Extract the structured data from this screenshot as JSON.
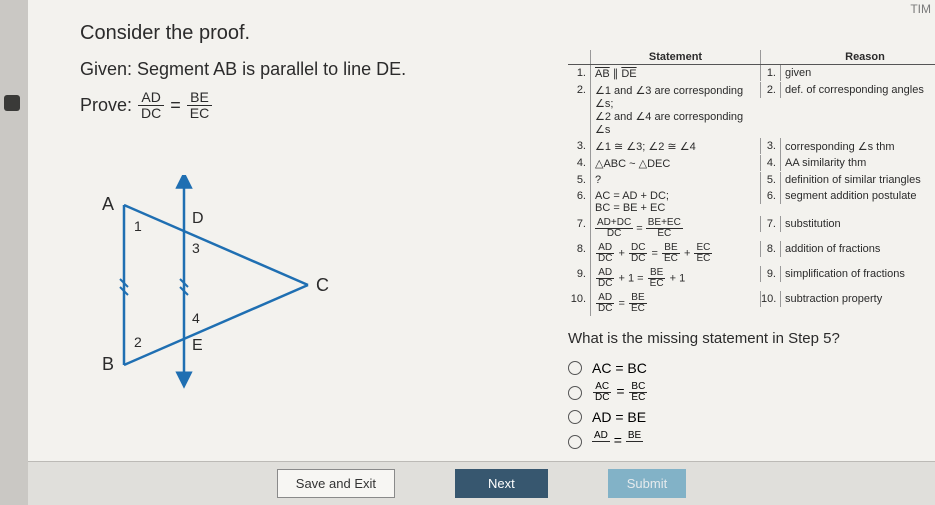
{
  "header_corner": "TIM",
  "stem": "Consider the proof.",
  "given": "Given: Segment AB is parallel to line DE.",
  "prove_label": "Prove:",
  "prove_frac1": {
    "num": "AD",
    "den": "DC"
  },
  "prove_eq": "=",
  "prove_frac2": {
    "num": "BE",
    "den": "EC"
  },
  "diagram": {
    "labels": {
      "A": "A",
      "B": "B",
      "C": "C",
      "D": "D",
      "E": "E",
      "a1": "1",
      "a2": "2",
      "a3": "3",
      "a4": "4"
    },
    "colors": {
      "line": "#1f6fb2",
      "arrow": "#1f6fb2",
      "text": "#2b2b2b"
    }
  },
  "proof": {
    "headers": {
      "statement": "Statement",
      "reason": "Reason"
    },
    "rows": [
      {
        "n": "1.",
        "s_html": "<span class='overline'>AB</span> ∥ <span class='overline'>DE</span>",
        "rn": "1.",
        "r": "given"
      },
      {
        "n": "2.",
        "s_html": "∠1 and ∠3 are corresponding ∠s;<br>∠2 and ∠4 are corresponding ∠s",
        "rn": "2.",
        "r": "def. of corresponding angles"
      },
      {
        "n": "3.",
        "s_html": "∠1 ≅ ∠3; ∠2 ≅ ∠4",
        "rn": "3.",
        "r": "corresponding ∠s thm"
      },
      {
        "n": "4.",
        "s_html": "△ABC ~ △DEC",
        "rn": "4.",
        "r": "AA similarity thm"
      },
      {
        "n": "5.",
        "s_html": "?",
        "rn": "5.",
        "r": "definition of similar triangles"
      },
      {
        "n": "6.",
        "s_html": "AC = AD + DC;<br>BC = BE + EC",
        "rn": "6.",
        "r": "segment addition postulate"
      },
      {
        "n": "7.",
        "s_html": "<span class='frac frac-sm'><span class='num'>AD+DC</span><span class='den'>DC</span></span> = <span class='frac frac-sm'><span class='num'>BE+EC</span><span class='den'>EC</span></span>",
        "rn": "7.",
        "r": "substitution"
      },
      {
        "n": "8.",
        "s_html": "<span class='frac frac-sm'><span class='num'>AD</span><span class='den'>DC</span></span> + <span class='frac frac-sm'><span class='num'>DC</span><span class='den'>DC</span></span> = <span class='frac frac-sm'><span class='num'>BE</span><span class='den'>EC</span></span> + <span class='frac frac-sm'><span class='num'>EC</span><span class='den'>EC</span></span>",
        "rn": "8.",
        "r": "addition of fractions"
      },
      {
        "n": "9.",
        "s_html": "<span class='frac frac-sm'><span class='num'>AD</span><span class='den'>DC</span></span> + 1 = <span class='frac frac-sm'><span class='num'>BE</span><span class='den'>EC</span></span> + 1",
        "rn": "9.",
        "r": "simplification of fractions"
      },
      {
        "n": "10.",
        "s_html": "<span class='frac frac-sm'><span class='num'>AD</span><span class='den'>DC</span></span> = <span class='frac frac-sm'><span class='num'>BE</span><span class='den'>EC</span></span>",
        "rn": "10.",
        "r": "subtraction property"
      }
    ]
  },
  "question": "What is the missing statement in Step 5?",
  "options": [
    {
      "html": "AC = BC"
    },
    {
      "html": "<span class='frac frac-sm'><span class='num'>AC</span><span class='den'>DC</span></span> = <span class='frac frac-sm'><span class='num'>BC</span><span class='den'>EC</span></span>"
    },
    {
      "html": "AD = BE"
    },
    {
      "html": "<span class='frac frac-sm'><span class='num'>AD</span><span class='den'>&nbsp;</span></span> = <span class='frac frac-sm'><span class='num'>BE</span><span class='den'>&nbsp;</span></span>"
    }
  ],
  "footer": {
    "save": "Save and Exit",
    "next": "Next",
    "submit": "Submit"
  },
  "colors": {
    "page_bg": "#f3f2ee",
    "footer_bg": "#e0dfdb",
    "next_bg": "#37576f",
    "submit_bg": "#5b9fbf"
  }
}
